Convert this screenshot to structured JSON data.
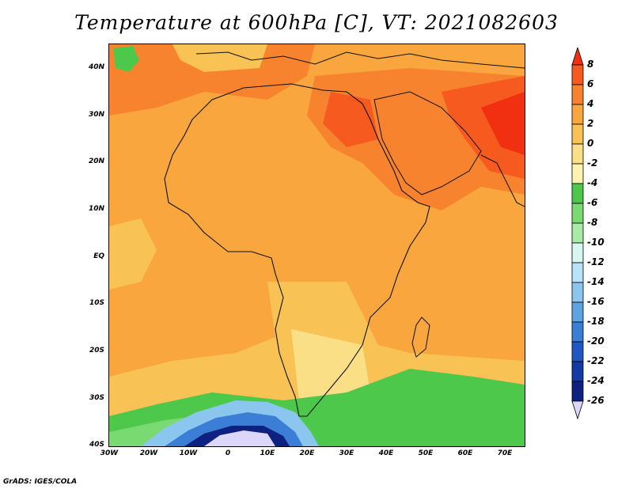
{
  "title": "Temperature at 600hPa [C], VT: 2021082603",
  "footer": "GrADS: IGES/COLA",
  "axes": {
    "y_labels": [
      "40N",
      "30N",
      "20N",
      "10N",
      "EQ",
      "10S",
      "20S",
      "30S",
      "40S"
    ],
    "y_values": [
      40,
      30,
      20,
      10,
      0,
      -10,
      -20,
      -30,
      -40
    ],
    "x_labels": [
      "30W",
      "20W",
      "10W",
      "0",
      "10E",
      "20E",
      "30E",
      "40E",
      "50E",
      "60E",
      "70E"
    ],
    "x_values": [
      -30,
      -20,
      -10,
      0,
      10,
      20,
      30,
      40,
      50,
      60,
      70
    ],
    "lon_range": [
      -30,
      75
    ],
    "lat_range": [
      -40,
      45
    ]
  },
  "colorbar": {
    "labels": [
      "8",
      "6",
      "4",
      "2",
      "0",
      "-2",
      "-4",
      "-6",
      "-8",
      "-10",
      "-12",
      "-14",
      "-16",
      "-18",
      "-20",
      "-22",
      "-24",
      "-26"
    ],
    "colors": [
      "#f03010",
      "#f65a1e",
      "#f8832e",
      "#f9a63e",
      "#f8c255",
      "#fbdf86",
      "#fdf2b0",
      "#4dc84a",
      "#7ada72",
      "#a7eba4",
      "#d6f6ef",
      "#b6e3f7",
      "#8bc6ef",
      "#5ea4e3",
      "#3a7ed6",
      "#1f58c2",
      "#143aa6",
      "#0f2180",
      "#dcd6f8"
    ]
  },
  "unit": "C"
}
